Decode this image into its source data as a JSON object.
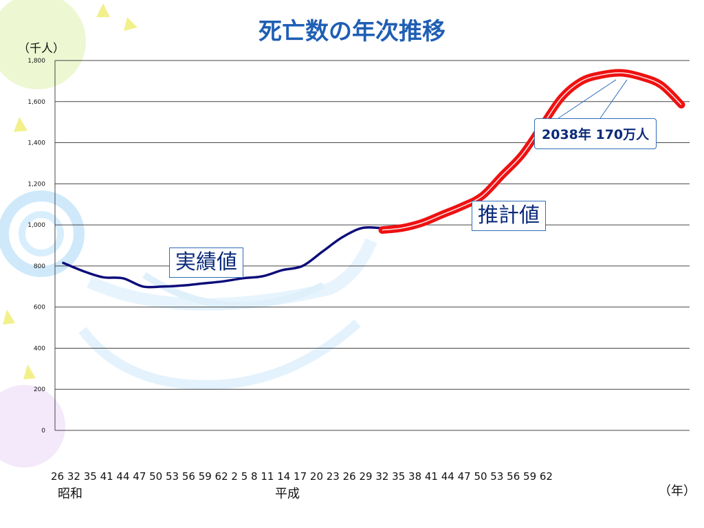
{
  "title": "死亡数の年次推移",
  "y_unit": "（千人）",
  "x_unit": "（年）",
  "x_tick_text": "26 32 35 41 44 47 50 53 56 59 62 2 5 8 11 14 17 20 23 26 29 32 35 38 41 44 47 50 53 56 59 62",
  "era_showa": "昭和",
  "era_heisei": "平成",
  "label_actual": "実績値",
  "label_projected": "推計値",
  "callout": "2038年 170万人",
  "colors": {
    "actual": "#0c0c7a",
    "projected": "#ee1111",
    "title": "#1f5fb4",
    "box_border": "#2d6cb6"
  },
  "chart_data": {
    "type": "line",
    "title": "死亡数の年次推移",
    "ylabel": "（千人）",
    "xlabel": "（年）",
    "ylim": [
      0,
      1800
    ],
    "yticks": [
      0,
      200,
      400,
      600,
      800,
      1000,
      1200,
      1400,
      1600,
      1800
    ],
    "ytick_labels": [
      "0",
      "200",
      "400",
      "600",
      "800",
      "1,000",
      "1,200",
      "1,400",
      "1,600",
      "1,800"
    ],
    "grid": true,
    "x_categories": [
      "26",
      "32",
      "35",
      "41",
      "44",
      "47",
      "50",
      "53",
      "56",
      "59",
      "62",
      "2",
      "5",
      "8",
      "11",
      "14",
      "17",
      "20",
      "23",
      "26",
      "29",
      "32",
      "35",
      "38",
      "41",
      "44",
      "47",
      "50",
      "53",
      "56",
      "59",
      "62"
    ],
    "series": [
      {
        "name": "実績値",
        "x_index": [
          0,
          1,
          2,
          3,
          4,
          5,
          6,
          7,
          8,
          9,
          10,
          11,
          12,
          13,
          14,
          15,
          16,
          17
        ],
        "values": [
          815,
          775,
          745,
          740,
          700,
          700,
          705,
          715,
          725,
          740,
          750,
          780,
          800,
          870,
          940,
          985,
          985,
          990
        ]
      },
      {
        "name": "推計値",
        "x_index": [
          16,
          17,
          18,
          19,
          20,
          21,
          22,
          23,
          24,
          25,
          26,
          27,
          28,
          29,
          30,
          31
        ],
        "values": [
          975,
          985,
          1010,
          1050,
          1090,
          1140,
          1240,
          1340,
          1480,
          1620,
          1700,
          1730,
          1740,
          1720,
          1680,
          1585
        ]
      }
    ],
    "annotations": [
      "実績値",
      "推計値",
      "2038年 170万人"
    ]
  }
}
